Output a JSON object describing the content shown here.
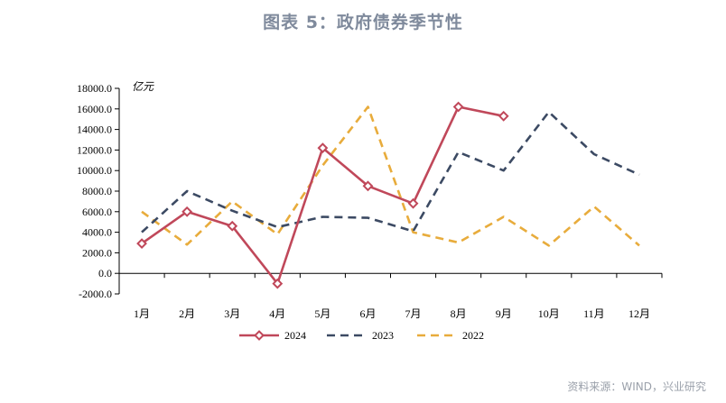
{
  "header": {
    "title": "图表 5：政府债券季节性"
  },
  "footer": {
    "source": "资料来源：WIND，兴业研究"
  },
  "chart_data": {
    "type": "line",
    "unit_label": "亿元",
    "categories": [
      "1月",
      "2月",
      "3月",
      "4月",
      "5月",
      "6月",
      "7月",
      "8月",
      "9月",
      "10月",
      "11月",
      "12月"
    ],
    "y_ticks": [
      "-2000.0",
      "0.0",
      "2000.0",
      "4000.0",
      "6000.0",
      "8000.0",
      "10000.0",
      "12000.0",
      "14000.0",
      "16000.0",
      "18000.0"
    ],
    "ylim": [
      -2000,
      18000
    ],
    "grid": false,
    "legend_position": "bottom",
    "series": [
      {
        "name": "2024",
        "color": "#c0485a",
        "style": "solid-marker",
        "values": [
          2900,
          6000,
          4600,
          -1000,
          12200,
          8500,
          6800,
          16200,
          15300,
          null,
          null,
          null
        ]
      },
      {
        "name": "2023",
        "color": "#3c4a63",
        "style": "dashed",
        "values": [
          4000,
          8000,
          6100,
          4500,
          5500,
          5400,
          4100,
          11800,
          10000,
          15700,
          11600,
          9600
        ]
      },
      {
        "name": "2022",
        "color": "#e8ac3c",
        "style": "dashed",
        "values": [
          6000,
          2800,
          7000,
          3800,
          10500,
          16200,
          4000,
          3000,
          5500,
          2700,
          6500,
          2700
        ]
      }
    ]
  }
}
